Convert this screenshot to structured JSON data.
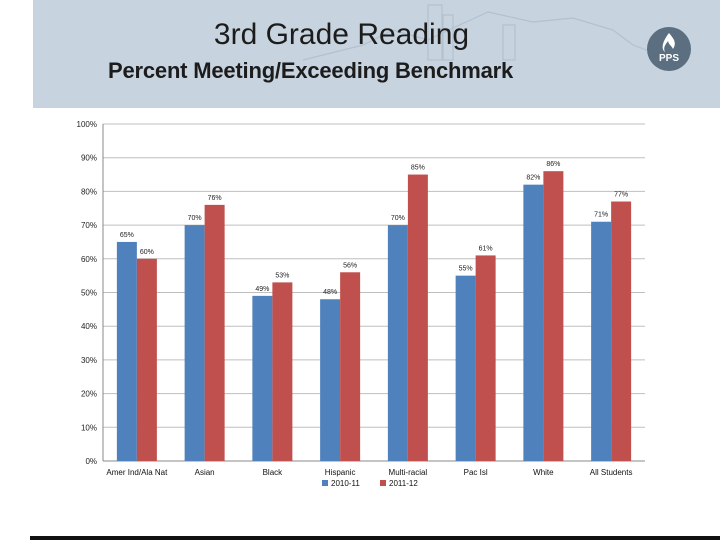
{
  "slide": {
    "title": "3rd Grade Reading",
    "subtitle": "Percent Meeting/Exceeding Benchmark",
    "logo_text": "PPS"
  },
  "chart_data": {
    "type": "bar",
    "title": "",
    "xlabel": "",
    "ylabel": "",
    "ylim": [
      0,
      100
    ],
    "y_ticks": [
      "0%",
      "10%",
      "20%",
      "30%",
      "40%",
      "50%",
      "60%",
      "70%",
      "80%",
      "90%",
      "100%"
    ],
    "grid": true,
    "legend": "bottom",
    "categories": [
      "Amer Ind/Ala Nat",
      "Asian",
      "Black",
      "Hispanic",
      "Multi-racial",
      "Pac Isl",
      "White",
      "All Students"
    ],
    "series": [
      {
        "name": "2010-11",
        "color": "#4f81bd",
        "values": [
          65,
          70,
          49,
          48,
          70,
          55,
          82,
          71
        ],
        "labels": [
          "65%",
          "70%",
          "49%",
          "48%",
          "70%",
          "55%",
          "82%",
          "71%"
        ]
      },
      {
        "name": "2011-12",
        "color": "#c0504d",
        "values": [
          60,
          76,
          53,
          56,
          85,
          61,
          86,
          77
        ],
        "labels": [
          "60%",
          "76%",
          "53%",
          "56%",
          "85%",
          "61%",
          "86%",
          "77%"
        ]
      }
    ]
  }
}
